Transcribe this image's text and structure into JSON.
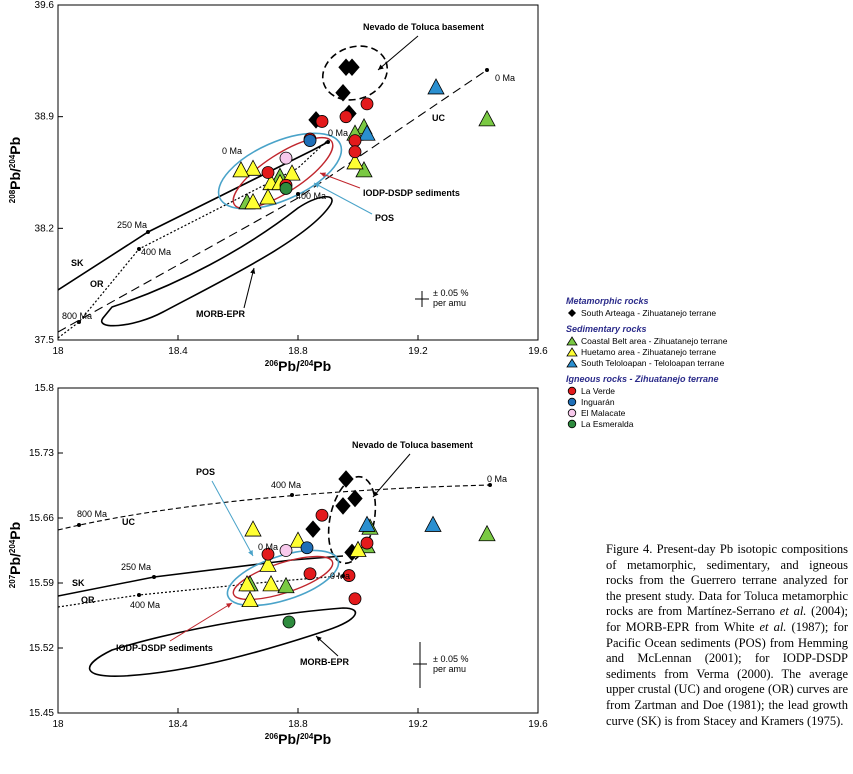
{
  "colors": {
    "metamorphic": "#000000",
    "coastal": "#7ac943",
    "huetamo": "#ffff33",
    "southtel": "#2a8fd0",
    "laverde": "#e31a1c",
    "inguaran": "#1f6fb8",
    "elmalacate": "#f7c9ec",
    "laesmeralda": "#2e8b3e",
    "pos": "#4aa3c9",
    "iodp": "#c0262d"
  },
  "chart_data": [
    {
      "type": "scatter",
      "xlabel": "206Pb/204Pb",
      "ylabel": "208Pb/204Pb",
      "xlim": [
        18,
        19.6
      ],
      "ylim": [
        37.5,
        39.6
      ],
      "xticks": [
        "18",
        "18.4",
        "18.8",
        "19.2",
        "19.6"
      ],
      "yticks": [
        "37.5",
        "38.2",
        "38.9",
        "39.6"
      ],
      "annotations": {
        "nevado": "Nevado de Toluca basement",
        "uc": "UC",
        "sk": "SK",
        "or": "OR",
        "pos": "POS",
        "iodp": "IODP-DSDP sediments",
        "morb": "MORB-EPR",
        "err": "± 0.05 %",
        "err2": "per amu",
        "m0a": "0 Ma",
        "m0b": "0 Ma",
        "m0c": "0 Ma",
        "m250": "250 Ma",
        "m400a": "400 Ma",
        "m400b": "400 Ma",
        "m800": "800 Ma"
      },
      "series": [
        {
          "name": "South Arteaga - Zihuatanejo terrane",
          "marker": "diamond",
          "color": "#000000",
          "points": [
            [
              18.96,
              39.21
            ],
            [
              18.98,
              39.21
            ],
            [
              18.95,
              39.05
            ],
            [
              18.97,
              38.92
            ],
            [
              18.86,
              38.88
            ]
          ]
        },
        {
          "name": "Coastal Belt area - Zihuatanejo terrane",
          "marker": "triangle",
          "color": "#7ac943",
          "points": [
            [
              19.43,
              38.88
            ],
            [
              19.02,
              38.83
            ],
            [
              18.99,
              38.79
            ],
            [
              19.02,
              38.56
            ],
            [
              18.63,
              38.36
            ],
            [
              18.74,
              38.52
            ]
          ]
        },
        {
          "name": "Huetamo area - Zihuatanejo terrane",
          "marker": "triangle",
          "color": "#ffff33",
          "points": [
            [
              18.65,
              38.57
            ],
            [
              18.61,
              38.56
            ],
            [
              18.71,
              38.48
            ],
            [
              18.7,
              38.39
            ],
            [
              18.78,
              38.54
            ],
            [
              18.74,
              38.48
            ],
            [
              18.99,
              38.61
            ],
            [
              18.65,
              38.36
            ]
          ]
        },
        {
          "name": "South Teloloapan - Teloloapan terrane",
          "marker": "triangle",
          "color": "#2a8fd0",
          "points": [
            [
              19.26,
              39.08
            ],
            [
              19.03,
              38.79
            ]
          ]
        },
        {
          "name": "La Verde",
          "marker": "circle",
          "color": "#e31a1c",
          "points": [
            [
              19.03,
              38.98
            ],
            [
              18.96,
              38.9
            ],
            [
              18.88,
              38.87
            ],
            [
              18.84,
              38.76
            ],
            [
              18.99,
              38.75
            ],
            [
              18.99,
              38.68
            ],
            [
              18.7,
              38.55
            ],
            [
              18.76,
              38.47
            ]
          ]
        },
        {
          "name": "Inguarán",
          "marker": "circle",
          "color": "#1f6fb8",
          "points": [
            [
              18.84,
              38.75
            ]
          ]
        },
        {
          "name": "El Malacate",
          "marker": "circle",
          "color": "#f7c9ec",
          "points": [
            [
              18.76,
              38.64
            ]
          ]
        },
        {
          "name": "La Esmeralda",
          "marker": "circle",
          "color": "#2e8b3e",
          "points": [
            [
              18.76,
              38.45
            ]
          ]
        }
      ]
    },
    {
      "type": "scatter",
      "xlabel": "206Pb/204Pb",
      "ylabel": "207Pb/204Pb",
      "xlim": [
        18,
        19.6
      ],
      "ylim": [
        15.45,
        15.8
      ],
      "xticks": [
        "18",
        "18.4",
        "18.8",
        "19.2",
        "19.6"
      ],
      "yticks": [
        "15.45",
        "15.52",
        "15.59",
        "15.66",
        "15.73",
        "15.8"
      ],
      "annotations": {
        "nevado": "Nevado de Toluca basement",
        "uc": "UC",
        "sk": "SK",
        "or": "OR",
        "pos": "POS",
        "iodp": "IODP-DSDP sediments",
        "morb": "MORB-EPR",
        "err": "± 0.05 %",
        "err2": "per amu",
        "m0a": "0 Ma",
        "m0b": "0 Ma",
        "m0c": "0 Ma",
        "m250": "250 Ma",
        "m400a": "400 Ma",
        "m400b": "400 Ma",
        "m800": "800 Ma"
      },
      "series": [
        {
          "name": "South Arteaga - Zihuatanejo terrane",
          "marker": "diamond",
          "color": "#000000",
          "points": [
            [
              18.96,
              15.702
            ],
            [
              18.99,
              15.681
            ],
            [
              18.95,
              15.673
            ],
            [
              18.85,
              15.648
            ],
            [
              18.98,
              15.623
            ]
          ]
        },
        {
          "name": "Coastal Belt area - Zihuatanejo terrane",
          "marker": "triangle",
          "color": "#7ac943",
          "points": [
            [
              19.43,
              15.642
            ],
            [
              19.04,
              15.649
            ],
            [
              19.03,
              15.629
            ],
            [
              18.76,
              15.586
            ],
            [
              18.64,
              15.588
            ]
          ]
        },
        {
          "name": "Huetamo area - Zihuatanejo terrane",
          "marker": "triangle",
          "color": "#ffff33",
          "points": [
            [
              18.65,
              15.647
            ],
            [
              18.8,
              15.635
            ],
            [
              18.7,
              15.609
            ],
            [
              18.71,
              15.588
            ],
            [
              18.63,
              15.588
            ],
            [
              18.64,
              15.571
            ],
            [
              19.0,
              15.625
            ]
          ]
        },
        {
          "name": "South Teloloapan - Teloloapan terrane",
          "marker": "triangle",
          "color": "#2a8fd0",
          "points": [
            [
              19.25,
              15.652
            ],
            [
              19.03,
              15.652
            ]
          ]
        },
        {
          "name": "La Verde",
          "marker": "circle",
          "color": "#e31a1c",
          "points": [
            [
              18.88,
              15.663
            ],
            [
              19.03,
              15.633
            ],
            [
              18.7,
              15.621
            ],
            [
              18.84,
              15.6
            ],
            [
              18.97,
              15.598
            ],
            [
              18.99,
              15.573
            ]
          ]
        },
        {
          "name": "Inguarán",
          "marker": "circle",
          "color": "#1f6fb8",
          "points": [
            [
              18.83,
              15.628
            ]
          ]
        },
        {
          "name": "El Malacate",
          "marker": "circle",
          "color": "#f7c9ec",
          "points": [
            [
              18.76,
              15.625
            ]
          ]
        },
        {
          "name": "La Esmeralda",
          "marker": "circle",
          "color": "#2e8b3e",
          "points": [
            [
              18.77,
              15.548
            ]
          ]
        }
      ]
    }
  ],
  "legend": {
    "groups": [
      {
        "title": "Metamorphic rocks",
        "items": [
          {
            "label": "South Arteaga - Zihuatanejo terrane",
            "marker": "diamond",
            "color": "#000000"
          }
        ]
      },
      {
        "title": "Sedimentary rocks",
        "items": [
          {
            "label": "Coastal Belt area - Zihuatanejo terrane",
            "marker": "triangle",
            "color": "#7ac943"
          },
          {
            "label": "Huetamo area - Zihuatanejo terrane",
            "marker": "triangle",
            "color": "#ffff33"
          },
          {
            "label": "South Teloloapan - Teloloapan terrane",
            "marker": "triangle",
            "color": "#2a8fd0"
          }
        ]
      },
      {
        "title": "Igneous rocks - Zihuatanejo terrane",
        "items": [
          {
            "label": "La Verde",
            "marker": "circle",
            "color": "#e31a1c"
          },
          {
            "label": "Inguarán",
            "marker": "circle",
            "color": "#1f6fb8"
          },
          {
            "label": "El Malacate",
            "marker": "circle",
            "color": "#f7c9ec"
          },
          {
            "label": "La Esmeralda",
            "marker": "circle",
            "color": "#2e8b3e"
          }
        ]
      }
    ]
  },
  "caption": {
    "p1": "Figure 4. Present-day Pb isotopic compositions of metamorphic, sedimentary, and igneous rocks from the Guerrero terrane analyzed for the present study. Data for Toluca metamorphic rocks are from Martínez-Serrano ",
    "et1": "et al.",
    "p2": " (2004); for MORB-EPR from White ",
    "et2": "et al.",
    "p3": " (1987); for Pacific Ocean sediments (POS) from Hemming and McLennan (2001); for IODP-DSDP sediments from Verma (2000). The average upper crustal (UC) and orogene (OR) curves are from Zartman and Doe (1981); the lead growth curve (SK) is from Stacey and Kramers (1975)."
  }
}
